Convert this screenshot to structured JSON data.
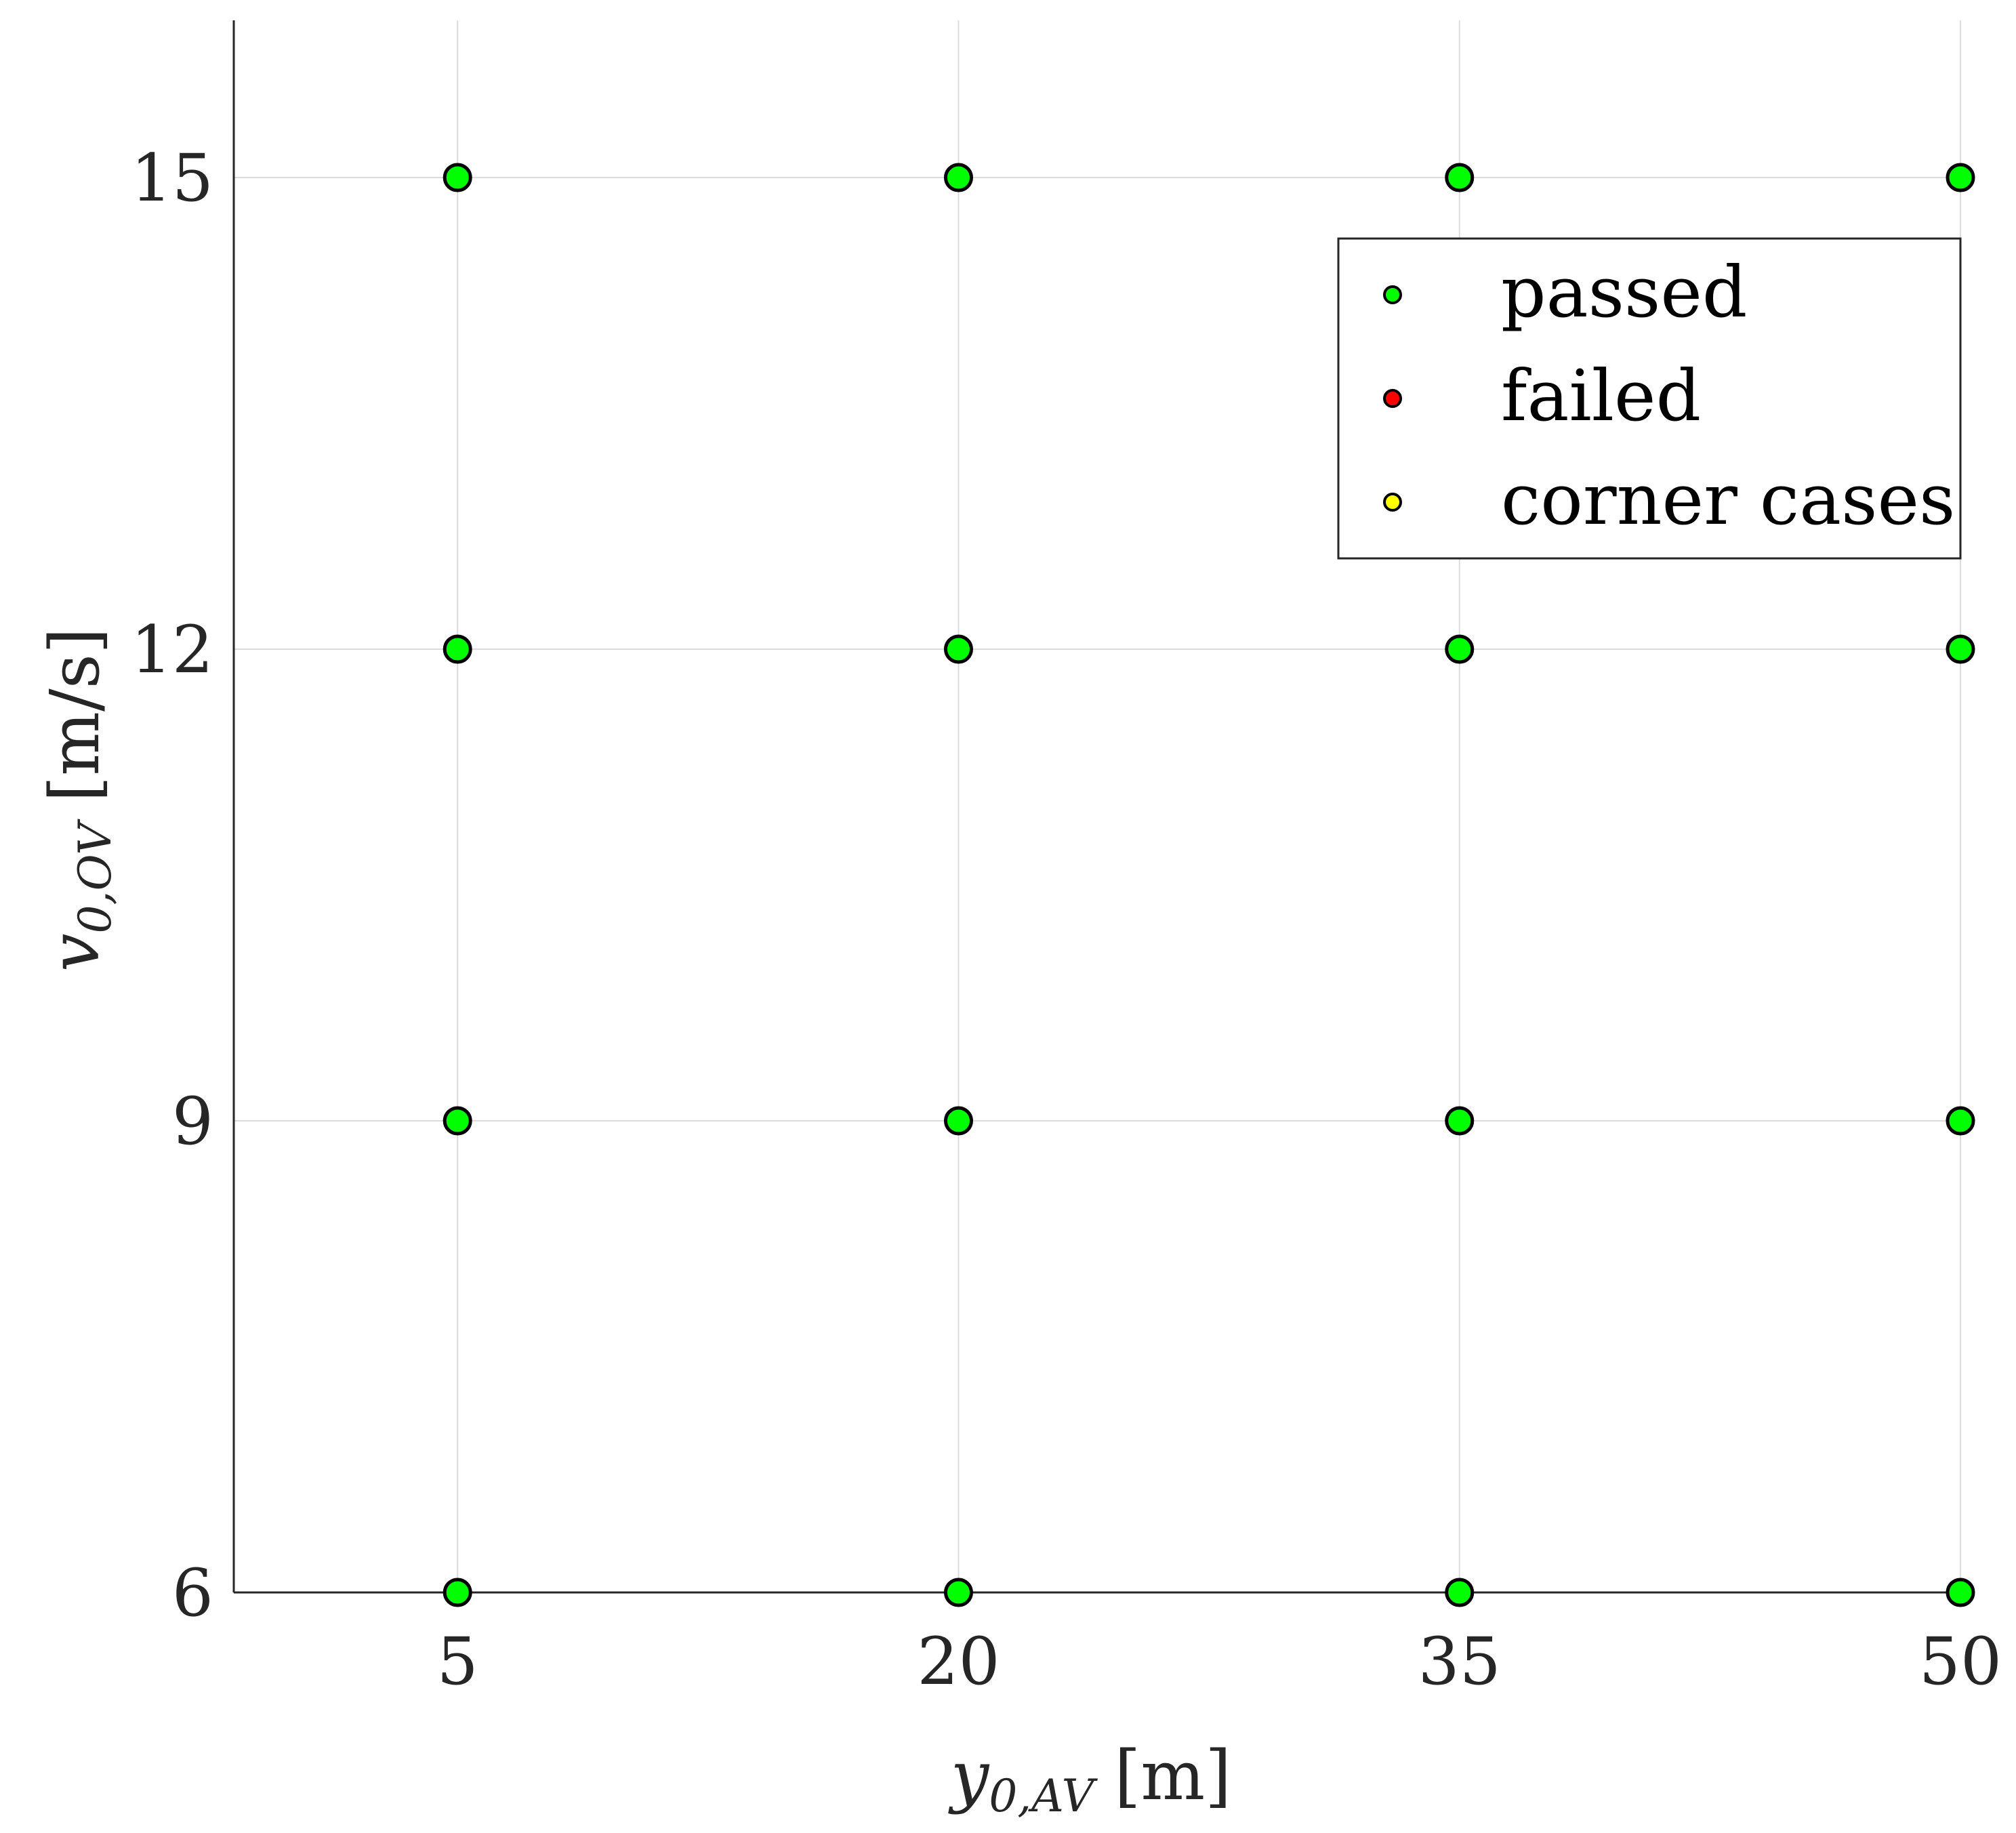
{
  "chart_data": {
    "type": "scatter",
    "xlabel": {
      "var": "y",
      "sub": "0,AV",
      "unit": "[m]"
    },
    "ylabel": {
      "var": "v",
      "sub": "0,OV",
      "unit": "[m/s]"
    },
    "xticks": [
      "5",
      "20",
      "35",
      "50"
    ],
    "yticks": [
      "6",
      "9",
      "12",
      "15"
    ],
    "xlim": [
      -1.7,
      50
    ],
    "ylim": [
      6,
      16
    ],
    "grid": true,
    "legend_position": "top-right",
    "series": [
      {
        "name": "passed",
        "color": "#00ff00",
        "points": [
          {
            "x": 5,
            "y": 15
          },
          {
            "x": 20,
            "y": 15
          },
          {
            "x": 35,
            "y": 15
          },
          {
            "x": 50,
            "y": 15
          },
          {
            "x": 5,
            "y": 12
          },
          {
            "x": 20,
            "y": 12
          },
          {
            "x": 35,
            "y": 12
          },
          {
            "x": 50,
            "y": 12
          },
          {
            "x": 5,
            "y": 9
          },
          {
            "x": 20,
            "y": 9
          },
          {
            "x": 35,
            "y": 9
          },
          {
            "x": 50,
            "y": 9
          },
          {
            "x": 5,
            "y": 6
          },
          {
            "x": 20,
            "y": 6
          },
          {
            "x": 35,
            "y": 6
          },
          {
            "x": 50,
            "y": 6
          }
        ]
      },
      {
        "name": "failed",
        "color": "#ff0000",
        "points": []
      },
      {
        "name": "corner cases",
        "color": "#ffff00",
        "points": []
      }
    ]
  }
}
